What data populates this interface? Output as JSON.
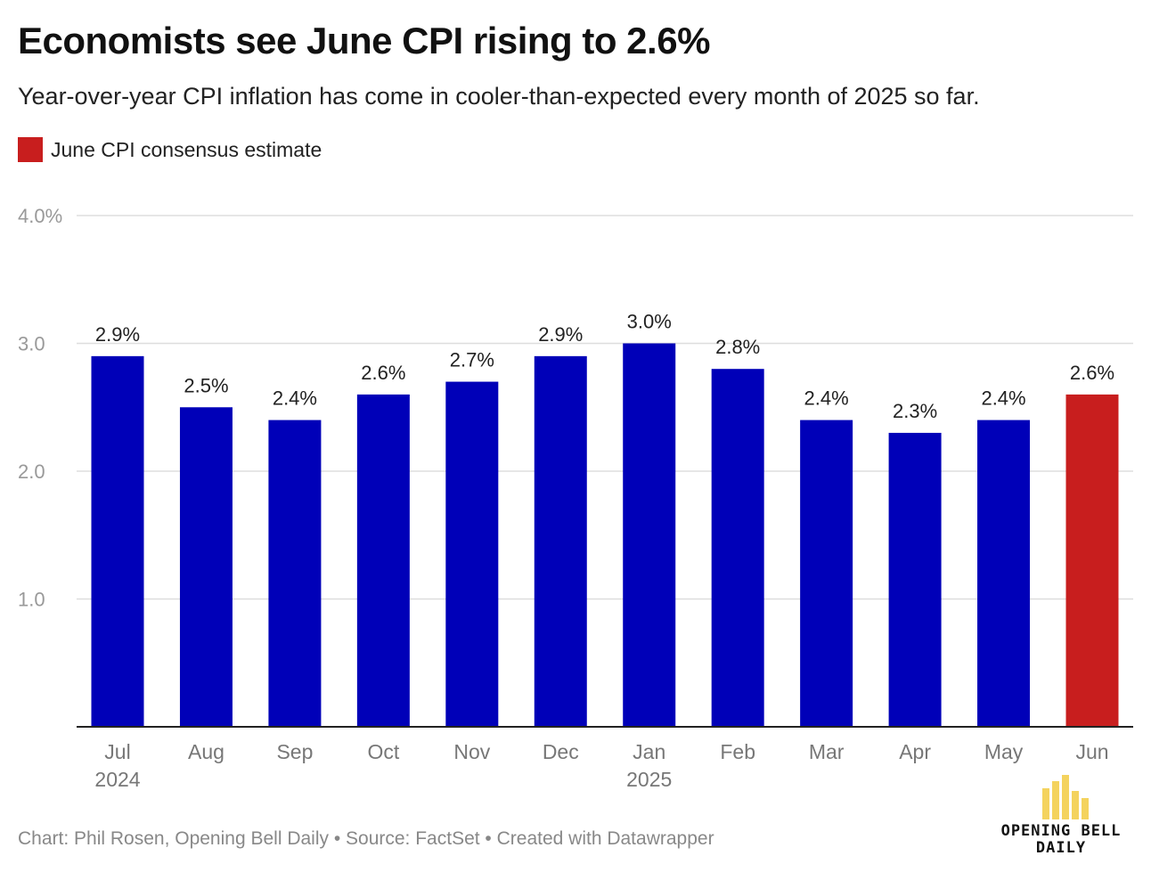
{
  "header": {
    "title": "Economists see June CPI rising to 2.6%",
    "subtitle": "Year-over-year CPI inflation has come in cooler-than-expected every month of 2025 so far."
  },
  "legend": {
    "label": "June CPI consensus estimate",
    "color": "#c81e1e"
  },
  "colors": {
    "actual_bar": "#0000b8",
    "estimate_bar": "#c81e1e",
    "gridline": "#dddddd",
    "axis_label": "#999999"
  },
  "chart_data": {
    "type": "bar",
    "categories": [
      "Jul",
      "Aug",
      "Sep",
      "Oct",
      "Nov",
      "Dec",
      "Jan",
      "Feb",
      "Mar",
      "Apr",
      "May",
      "Jun"
    ],
    "year_labels": [
      "2024",
      "",
      "",
      "",
      "",
      "",
      "2025",
      "",
      "",
      "",
      "",
      ""
    ],
    "values": [
      2.9,
      2.5,
      2.4,
      2.6,
      2.7,
      2.9,
      3.0,
      2.8,
      2.4,
      2.3,
      2.4,
      2.6
    ],
    "data_labels": [
      "2.9%",
      "2.5%",
      "2.4%",
      "2.6%",
      "2.7%",
      "2.9%",
      "3.0%",
      "2.8%",
      "2.4%",
      "2.3%",
      "2.4%",
      "2.6%"
    ],
    "highlight": [
      false,
      false,
      false,
      false,
      false,
      false,
      false,
      false,
      false,
      false,
      false,
      true
    ],
    "yticks": [
      1.0,
      2.0,
      3.0,
      4.0
    ],
    "ytick_labels": [
      "1.0",
      "2.0",
      "3.0",
      "4.0%"
    ],
    "ylim": [
      0,
      4.0
    ],
    "grid": true
  },
  "footer": {
    "credit": "Chart: Phil Rosen, Opening Bell Daily • Source: FactSet • Created with Datawrapper"
  },
  "logo": {
    "line1": "OPENING BELL",
    "line2": "DAILY"
  }
}
